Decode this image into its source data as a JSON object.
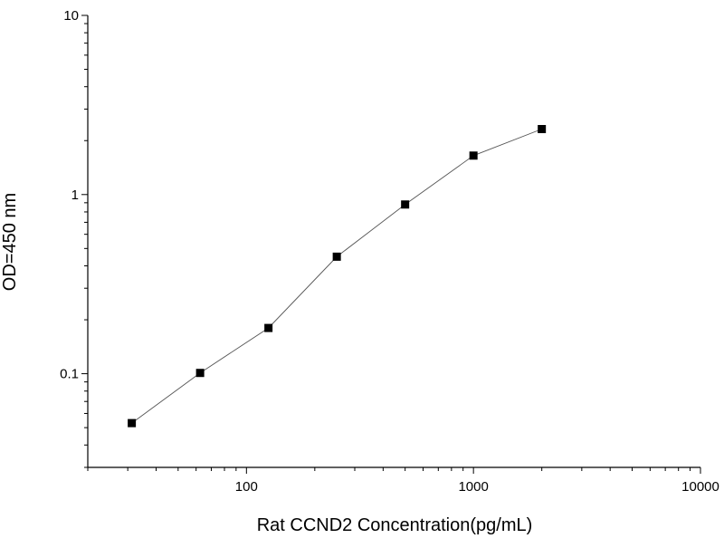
{
  "chart_data": {
    "type": "line",
    "title": "",
    "xlabel": "Rat CCND2 Concentration(pg/mL)",
    "ylabel": "OD=450 nm",
    "x_scale": "log",
    "y_scale": "log",
    "xlim": [
      20,
      10000
    ],
    "ylim": [
      0.03,
      10
    ],
    "x_tick_labels": [
      "100",
      "1000",
      "10000"
    ],
    "y_tick_labels": [
      "0.1",
      "1",
      "10"
    ],
    "grid": false,
    "legend": "none",
    "marker": "square",
    "line_color": "#555555",
    "marker_color": "#000000",
    "series": [
      {
        "x": [
          31.25,
          62.5,
          125,
          250,
          500,
          1000,
          2000
        ],
        "y": [
          0.053,
          0.101,
          0.18,
          0.45,
          0.88,
          1.65,
          2.32
        ]
      }
    ]
  }
}
